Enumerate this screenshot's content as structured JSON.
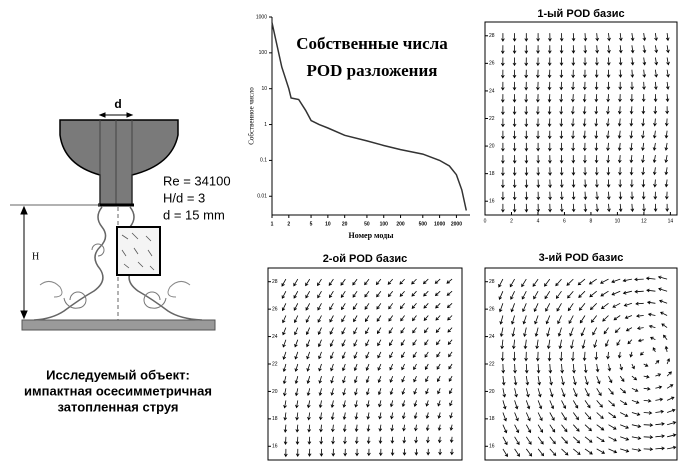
{
  "diagram": {
    "label_d": "d",
    "params": [
      "Re = 34100",
      "H/d = 3",
      "d = 15 mm"
    ],
    "label_H": "H",
    "caption": [
      "Исследуемый объект:",
      "импактная осесимметричная",
      "затопленная струя"
    ]
  },
  "chart_data": [
    {
      "type": "line",
      "title": [
        "Собственные числа",
        "POD разложения"
      ],
      "x_label": "Номер моды",
      "y_label": "Собственное число",
      "xscale": "log",
      "yscale": "log",
      "color": "#333333",
      "x": [
        1,
        1.5,
        2,
        2.2,
        3,
        4,
        5,
        7,
        10,
        20,
        50,
        100,
        200,
        500,
        1000,
        1500,
        2000,
        2500,
        3000
      ],
      "values": [
        700,
        40,
        10,
        5.5,
        5,
        2.5,
        1.3,
        1.0,
        0.8,
        0.5,
        0.35,
        0.26,
        0.2,
        0.15,
        0.1,
        0.07,
        0.04,
        0.015,
        0.004
      ],
      "xlim": [
        1,
        3500
      ],
      "ylim": [
        0.003,
        1000
      ],
      "xticks": [
        1,
        2,
        5,
        10,
        20,
        50,
        100,
        200,
        500,
        1000,
        2000
      ],
      "yticks": [
        0.01,
        0.1,
        1,
        10,
        100,
        1000
      ]
    },
    {
      "type": "quiver",
      "title": "1-ый POD базис",
      "xlim": [
        0,
        14.5
      ],
      "ylim": [
        15,
        29
      ],
      "xticks": [
        0,
        2,
        4,
        6,
        8,
        10,
        12,
        14
      ],
      "yticks": [
        16,
        18,
        20,
        22,
        24,
        26,
        28
      ]
    },
    {
      "type": "quiver",
      "title": "2-ой POD базис",
      "xlim": [
        0,
        14.5
      ],
      "ylim": [
        15,
        29
      ],
      "yticks": [
        16,
        18,
        20,
        22,
        24,
        26,
        28
      ]
    },
    {
      "type": "quiver",
      "title": "3-ий POD базис",
      "xlim": [
        0,
        14.5
      ],
      "ylim": [
        15,
        29
      ],
      "yticks": [
        16,
        18,
        20,
        22,
        24,
        26,
        28
      ]
    }
  ]
}
